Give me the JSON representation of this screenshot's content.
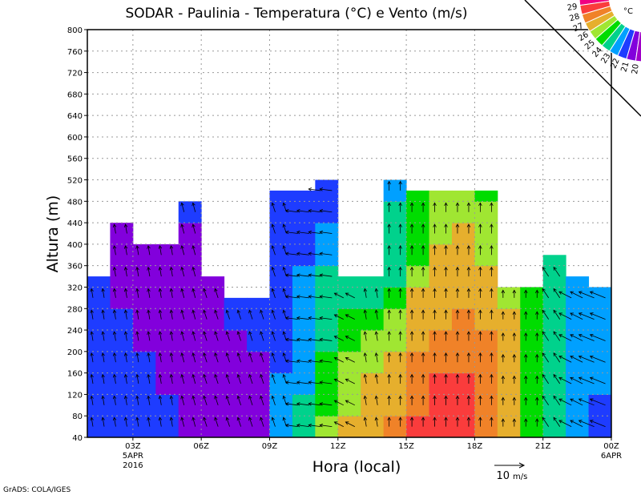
{
  "chart_data": {
    "type": "heatmap",
    "title": "SODAR - Paulinia - Temperatura (°C) e Vento (m/s)",
    "xlabel": "Hora (local)",
    "ylabel": "Altura (m)",
    "xlim": [
      1,
      24
    ],
    "ylim": [
      40,
      800
    ],
    "grid": true,
    "y_ticks": [
      40,
      80,
      120,
      160,
      200,
      240,
      280,
      320,
      360,
      400,
      440,
      480,
      520,
      560,
      600,
      640,
      680,
      720,
      760,
      800
    ],
    "x_ticks": [
      {
        "hour": 3,
        "label": "03Z",
        "sub1": "5APR",
        "sub2": "2016"
      },
      {
        "hour": 6,
        "label": "06Z"
      },
      {
        "hour": 9,
        "label": "09Z"
      },
      {
        "hour": 12,
        "label": "12Z"
      },
      {
        "hour": 15,
        "label": "15Z"
      },
      {
        "hour": 18,
        "label": "18Z"
      },
      {
        "hour": 21,
        "label": "21Z"
      },
      {
        "hour": 24,
        "label": "00Z",
        "sub1": "6APR"
      }
    ],
    "row_step_m": 40,
    "columns": [
      {
        "start": 1,
        "top": 340,
        "temps": [
          21,
          21,
          21,
          21,
          21,
          21,
          21,
          21
        ],
        "wind": [
          -0.5,
          3
        ]
      },
      {
        "start": 2,
        "top": 440,
        "temps": [
          21,
          21,
          21,
          21,
          21,
          21,
          20,
          20,
          20,
          20
        ],
        "wind": [
          -0.5,
          3
        ]
      },
      {
        "start": 3,
        "top": 400,
        "temps": [
          21,
          21,
          21,
          21,
          20,
          20,
          20,
          20,
          20
        ],
        "wind": [
          -0.5,
          3
        ]
      },
      {
        "start": 4,
        "top": 400,
        "temps": [
          21,
          21,
          20,
          20,
          20,
          20,
          20,
          20,
          20
        ],
        "wind": [
          -0.5,
          3
        ]
      },
      {
        "start": 5,
        "top": 480,
        "temps": [
          20,
          20,
          20,
          20,
          20,
          20,
          20,
          20,
          20,
          20,
          21
        ],
        "wind": [
          -0.8,
          3
        ]
      },
      {
        "start": 6,
        "top": 340,
        "temps": [
          20,
          20,
          20,
          20,
          20,
          20,
          20,
          20
        ],
        "wind": [
          -1,
          3
        ]
      },
      {
        "start": 7,
        "top": 300,
        "temps": [
          20,
          20,
          20,
          20,
          20,
          21,
          21
        ],
        "wind": [
          -1,
          3
        ]
      },
      {
        "start": 8,
        "top": 300,
        "temps": [
          20,
          20,
          20,
          20,
          21,
          21,
          21
        ],
        "wind": [
          -1,
          3
        ]
      },
      {
        "start": 9,
        "top": 500,
        "temps": [
          22,
          22,
          22,
          21,
          21,
          21,
          21,
          21,
          21,
          21,
          21,
          21
        ],
        "wind": [
          -1,
          3
        ]
      },
      {
        "start": 10,
        "top": 500,
        "temps": [
          23,
          23,
          22,
          22,
          22,
          22,
          22,
          22,
          21,
          21,
          21,
          21
        ],
        "wind": [
          -4,
          0.5
        ]
      },
      {
        "start": 11,
        "top": 520,
        "temps": [
          25,
          24,
          24,
          24,
          23,
          23,
          23,
          23,
          22,
          22,
          21,
          21
        ],
        "wind": [
          -4,
          0.5
        ]
      },
      {
        "start": 12,
        "top": 340,
        "temps": [
          26,
          25,
          25,
          25,
          24,
          24,
          23,
          23
        ],
        "wind": [
          -3,
          1.5
        ]
      },
      {
        "start": 13,
        "top": 340,
        "temps": [
          26,
          26,
          26,
          25,
          25,
          24,
          23,
          23
        ],
        "wind": [
          -0.5,
          3
        ]
      },
      {
        "start": 14,
        "top": 520,
        "temps": [
          27,
          26,
          26,
          26,
          25,
          25,
          24,
          23,
          23,
          23,
          23,
          22
        ],
        "wind": [
          0,
          3
        ]
      },
      {
        "start": 15,
        "top": 500,
        "temps": [
          28,
          27,
          27,
          27,
          26,
          26,
          26,
          25,
          24,
          24,
          24,
          24
        ],
        "wind": [
          0,
          3
        ]
      },
      {
        "start": 16,
        "top": 500,
        "temps": [
          28,
          28,
          28,
          27,
          27,
          26,
          26,
          26,
          26,
          25,
          25,
          25
        ],
        "wind": [
          0,
          3
        ]
      },
      {
        "start": 17,
        "top": 500,
        "temps": [
          28,
          28,
          28,
          27,
          27,
          27,
          26,
          26,
          26,
          26,
          25,
          25
        ],
        "wind": [
          0,
          3
        ]
      },
      {
        "start": 18,
        "top": 500,
        "temps": [
          27,
          27,
          27,
          27,
          27,
          26,
          26,
          26,
          25,
          25,
          25,
          24
        ],
        "wind": [
          0,
          3
        ]
      },
      {
        "start": 19,
        "top": 320,
        "temps": [
          26,
          26,
          26,
          26,
          26,
          26,
          25
        ],
        "wind": [
          0,
          2.5
        ]
      },
      {
        "start": 20,
        "top": 320,
        "temps": [
          24,
          24,
          24,
          24,
          24,
          24,
          24
        ],
        "wind": [
          0,
          2.5
        ]
      },
      {
        "start": 21,
        "top": 380,
        "temps": [
          23,
          23,
          23,
          23,
          23,
          23,
          23,
          23,
          23
        ],
        "wind": [
          -2,
          3
        ]
      },
      {
        "start": 22,
        "top": 340,
        "temps": [
          22,
          22,
          22,
          22,
          22,
          22,
          22,
          22
        ],
        "wind": [
          -4,
          2
        ]
      },
      {
        "start": 23,
        "top": 320,
        "temps": [
          21,
          21,
          22,
          22,
          22,
          22,
          22
        ],
        "wind": [
          -5,
          2
        ]
      }
    ],
    "colorbar": {
      "unit": "°C",
      "levels": [
        20,
        21,
        22,
        23,
        24,
        25,
        26,
        27,
        28,
        29
      ],
      "colors": {
        "19": "#a000c8",
        "20": "#8200dc",
        "21": "#1e3cff",
        "22": "#00a0ff",
        "23": "#00d28c",
        "24": "#00dc00",
        "25": "#a0e632",
        "26": "#e6af2d",
        "27": "#f08228",
        "28": "#fa3c3c",
        "29": "#f00082"
      }
    },
    "wind_reference": {
      "value_label": "10",
      "unit": "m/s"
    }
  },
  "footer": "GrADS: COLA/IGES"
}
